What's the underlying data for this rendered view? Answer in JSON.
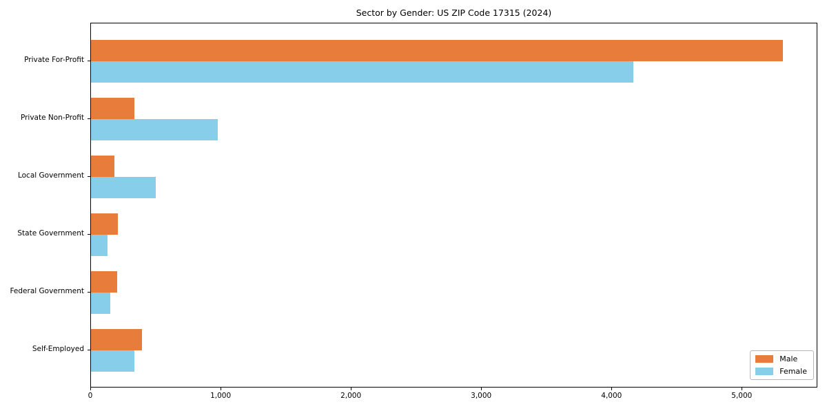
{
  "chart_data": {
    "type": "bar",
    "orientation": "horizontal",
    "title": "Sector by Gender: US ZIP Code 17315 (2024)",
    "xlabel": "",
    "ylabel": "",
    "categories": [
      "Private For-Profit",
      "Private Non-Profit",
      "Local Government",
      "State Government",
      "Federal Government",
      "Self-Employed"
    ],
    "series": [
      {
        "name": "Male",
        "color": "#e87d3b",
        "values": [
          5310,
          335,
          180,
          205,
          200,
          390
        ]
      },
      {
        "name": "Female",
        "color": "#87ceeb",
        "values": [
          4160,
          975,
          495,
          125,
          150,
          335
        ]
      }
    ],
    "xlim": [
      0,
      5580
    ],
    "x_ticks": [
      0,
      1000,
      2000,
      3000,
      4000,
      5000
    ],
    "x_tick_labels": [
      "0",
      "1,000",
      "2,000",
      "3,000",
      "4,000",
      "5,000"
    ],
    "grid": false,
    "legend_position": "lower right",
    "colors": {
      "male": "#e87d3b",
      "female": "#87ceeb",
      "spine": "#000000",
      "text": "#000000"
    }
  }
}
